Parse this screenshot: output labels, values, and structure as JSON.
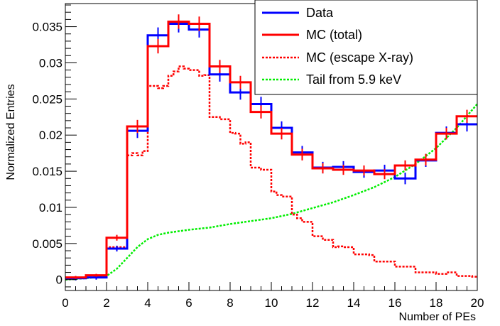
{
  "chart_data": {
    "type": "line",
    "xlabel": "Number of PEs",
    "ylabel": "Normalized Entries",
    "xlim": [
      0,
      20
    ],
    "ylim": [
      -0.0015,
      0.0382
    ],
    "x_ticks": [
      0,
      2,
      4,
      6,
      8,
      10,
      12,
      14,
      16,
      18,
      20
    ],
    "x_tick_labels": [
      "0",
      "2",
      "4",
      "6",
      "8",
      "10",
      "12",
      "14",
      "16",
      "18",
      "20"
    ],
    "y_ticks": [
      0,
      0.005,
      0.01,
      0.015,
      0.02,
      0.025,
      0.03,
      0.035
    ],
    "y_tick_labels": [
      "0",
      "0.005",
      "0.01",
      "0.015",
      "0.02",
      "0.025",
      "0.03",
      "0.035"
    ],
    "grid": false,
    "legend_position": "top-right",
    "bin_edges": [
      0,
      1,
      2,
      3,
      4,
      5,
      6,
      7,
      8,
      9,
      10,
      11,
      12,
      13,
      14,
      15,
      16,
      17,
      18,
      19,
      20
    ],
    "series": [
      {
        "name": "Data",
        "color": "#0000ff",
        "style": "hist-errorbars",
        "values": [
          0.0002,
          0.0003,
          0.0043,
          0.0206,
          0.0338,
          0.0354,
          0.0346,
          0.0284,
          0.0259,
          0.0243,
          0.021,
          0.0176,
          0.0155,
          0.0156,
          0.0149,
          0.0151,
          0.014,
          0.0165,
          0.0203,
          0.0215
        ],
        "errors": [
          0.0003,
          0.0003,
          0.0004,
          0.001,
          0.0011,
          0.0012,
          0.0011,
          0.001,
          0.001,
          0.001,
          0.0009,
          0.0009,
          0.0008,
          0.0008,
          0.0008,
          0.0008,
          0.0008,
          0.0009,
          0.0009,
          0.001
        ]
      },
      {
        "name": "MC (total)",
        "color": "#ff0000",
        "style": "hist-solid",
        "values": [
          0.0003,
          0.0006,
          0.0058,
          0.0212,
          0.0323,
          0.0357,
          0.0354,
          0.0295,
          0.0273,
          0.0232,
          0.0202,
          0.0173,
          0.0154,
          0.0152,
          0.0151,
          0.0146,
          0.0158,
          0.0166,
          0.0202,
          0.0226
        ],
        "errors": [
          0.0002,
          0.0002,
          0.0004,
          0.0009,
          0.001,
          0.001,
          0.001,
          0.0009,
          0.0009,
          0.0009,
          0.0008,
          0.0008,
          0.0007,
          0.0007,
          0.0007,
          0.0007,
          0.0007,
          0.0008,
          0.0008,
          0.0009
        ]
      },
      {
        "name": "MC (escape X-ray)",
        "color": "#ff0000",
        "style": "hist-dotted",
        "x": [
          0,
          0.5,
          1,
          1.5,
          2,
          2.5,
          3,
          3.25,
          3.5,
          3.75,
          4,
          4.25,
          4.5,
          4.75,
          5,
          5.25,
          5.5,
          5.75,
          6,
          6.25,
          6.5,
          6.75,
          7,
          7.25,
          7.5,
          7.75,
          8,
          8.25,
          8.5,
          8.75,
          9,
          9.25,
          9.5,
          9.75,
          10,
          10.25,
          10.5,
          10.75,
          11,
          11.25,
          11.5,
          11.75,
          12,
          12.25,
          12.5,
          12.75,
          13,
          13.25,
          13.5,
          13.75,
          14,
          14.25,
          14.5,
          14.75,
          15,
          15.25,
          15.5,
          15.75,
          16,
          16.25,
          16.5,
          16.75,
          17,
          17.25,
          17.5,
          17.75,
          18,
          18.25,
          18.5,
          18.75,
          19,
          19.25,
          19.5,
          19.75
        ],
        "values": [
          0.0002,
          0.0002,
          0.0003,
          0.0004,
          0.0045,
          0.0045,
          0.0172,
          0.0175,
          0.0172,
          0.0178,
          0.0268,
          0.0268,
          0.0265,
          0.0268,
          0.0282,
          0.0288,
          0.0295,
          0.0292,
          0.029,
          0.029,
          0.0282,
          0.0283,
          0.0225,
          0.0225,
          0.0222,
          0.0222,
          0.0203,
          0.0202,
          0.0188,
          0.019,
          0.0155,
          0.0155,
          0.0152,
          0.0152,
          0.0122,
          0.0117,
          0.0115,
          0.0115,
          0.009,
          0.0085,
          0.008,
          0.008,
          0.006,
          0.006,
          0.0055,
          0.0055,
          0.0045,
          0.0046,
          0.0045,
          0.0045,
          0.0035,
          0.0035,
          0.0035,
          0.0034,
          0.0025,
          0.0025,
          0.0025,
          0.0025,
          0.0018,
          0.0018,
          0.0018,
          0.0018,
          0.001,
          0.001,
          0.001,
          0.001,
          0.0008,
          0.0008,
          0.001,
          0.001,
          0.0005,
          0.0005,
          0.0005,
          0.0004
        ]
      },
      {
        "name": "Tail from 5.9 keV",
        "color": "#00ee00",
        "style": "line-dotted",
        "x": [
          0,
          1,
          2,
          2.5,
          3,
          3.5,
          4,
          4.5,
          5,
          6,
          7,
          8,
          9,
          10,
          11,
          12,
          13,
          14,
          15,
          16,
          17,
          18,
          19,
          20
        ],
        "values": [
          0.0,
          0.0002,
          0.0005,
          0.0015,
          0.003,
          0.0045,
          0.0056,
          0.0062,
          0.0065,
          0.0069,
          0.0072,
          0.0077,
          0.0081,
          0.0085,
          0.0091,
          0.0099,
          0.0107,
          0.0117,
          0.0128,
          0.0142,
          0.016,
          0.0182,
          0.021,
          0.0243
        ]
      }
    ]
  }
}
